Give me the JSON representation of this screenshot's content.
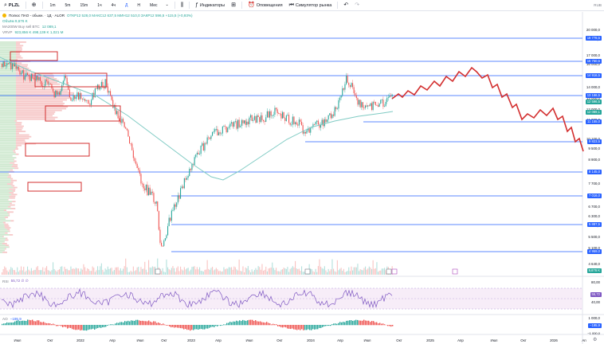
{
  "toolbar": {
    "symbol": "PLZL",
    "timeframes": [
      "1m",
      "5m",
      "15m",
      "1ч",
      "4ч",
      "Д",
      "Н",
      "Мес"
    ],
    "indicators_label": "Индикаторы",
    "alerts_label": "Оповещения",
    "replay_label": "Симулятор рынка",
    "currency": "RUB"
  },
  "legend": {
    "title": "Полюс ПАО - обыкн. · 1Д · ALOR",
    "ohlc": "ОТКР12 528,0 МАКС12 637,5 МИН12 510,0 ЗАКР12 596,5 +115,5 (+0,93%)",
    "line2": "Объём 9,676 K",
    "line3_name": "MA200W Buy sell BTC",
    "line3_value": "12 089,1",
    "line4_name": "VRVP",
    "line4_values": "923,856 K  498,139 K  1,021 M"
  },
  "rsi_legend": {
    "name": "RSI",
    "values": "55,72  ∅  ∅"
  },
  "ao_legend": {
    "name": "AO",
    "value": "−195,9"
  },
  "price_axis": {
    "ticks": [
      "20 000,0",
      "19 000,0",
      "17 000,0",
      "16 000,0",
      "15 000,0",
      "14 000,0",
      "13 000,0",
      "12 000,0",
      "11 000,0",
      "10 100,0",
      "9 500,0",
      "8 900,0",
      "7 700,0",
      "7 300,0",
      "6 700,0",
      "6 300,0",
      "5 900,0",
      "5 500,0",
      "5 100,0",
      "4 640,0"
    ],
    "tags": [
      {
        "text": "18 778,5",
        "color": "#2962ff"
      },
      {
        "text": "16 750,5",
        "color": "#2962ff"
      },
      {
        "text": "14 916,5",
        "color": "#2962ff"
      },
      {
        "text": "13 166,5",
        "color": "#2962ff"
      },
      {
        "text": "12 596,5",
        "color": "#26a69a"
      },
      {
        "text": "12 089,1",
        "color": "#26a69a"
      },
      {
        "text": "11 155,0",
        "color": "#2962ff"
      },
      {
        "text": "9 823,5",
        "color": "#2962ff"
      },
      {
        "text": "8 145,0",
        "color": "#2962ff"
      },
      {
        "text": "7 016,0",
        "color": "#2962ff"
      },
      {
        "text": "5 887,5",
        "color": "#2962ff"
      },
      {
        "text": "4 959,0",
        "color": "#2962ff"
      },
      {
        "text": "9,676 K",
        "color": "#26a69a"
      }
    ]
  },
  "rsi_axis": {
    "ticks": [
      "80,00",
      "40,00"
    ],
    "tag": "55,72"
  },
  "ao_axis": {
    "ticks": [
      "1 000,0",
      "−1 000,0"
    ],
    "tag": "−195,9"
  },
  "time_axis": [
    "Июл",
    "Окт",
    "2022",
    "Апр",
    "Июл",
    "Окт",
    "2023",
    "Апр",
    "Июл",
    "Окт",
    "2024",
    "Апр",
    "Июл",
    "Окт",
    "2025",
    "Апр",
    "Июл",
    "Окт",
    "2026",
    "Ап"
  ],
  "colors": {
    "accent": "#2962ff",
    "up": "#26a69a",
    "down": "#ef5350",
    "forecast": "#e53935",
    "ma": "#80cbc4",
    "rsi": "#7e57c2"
  }
}
